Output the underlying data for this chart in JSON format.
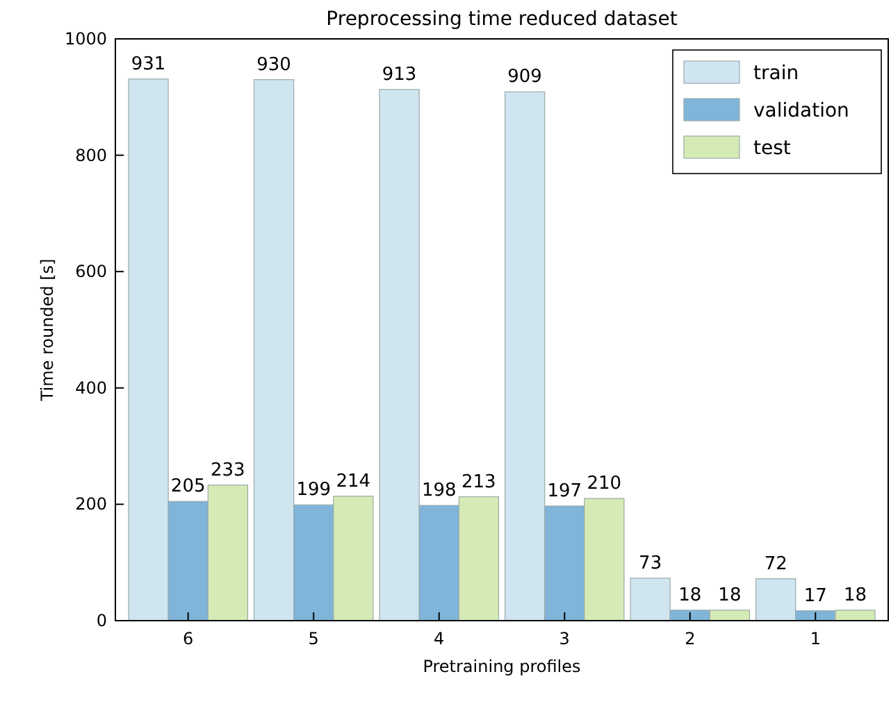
{
  "chart_data": {
    "type": "bar",
    "title": "Preprocessing time reduced dataset",
    "xlabel": "Pretraining profiles",
    "ylabel": "Time rounded [s]",
    "categories": [
      "6",
      "5",
      "4",
      "3",
      "2",
      "1"
    ],
    "series": [
      {
        "name": "train",
        "color": "#cfe5ef",
        "values": [
          931,
          930,
          913,
          909,
          73,
          72
        ]
      },
      {
        "name": "validation",
        "color": "#80b4d9",
        "values": [
          205,
          199,
          198,
          197,
          18,
          17
        ]
      },
      {
        "name": "test",
        "color": "#d5ebb5",
        "values": [
          233,
          214,
          213,
          210,
          18,
          18
        ]
      }
    ],
    "ylim": [
      0,
      1000
    ],
    "yticks": [
      0,
      200,
      400,
      600,
      800,
      1000
    ],
    "data_labels": true,
    "legend": "top right"
  }
}
